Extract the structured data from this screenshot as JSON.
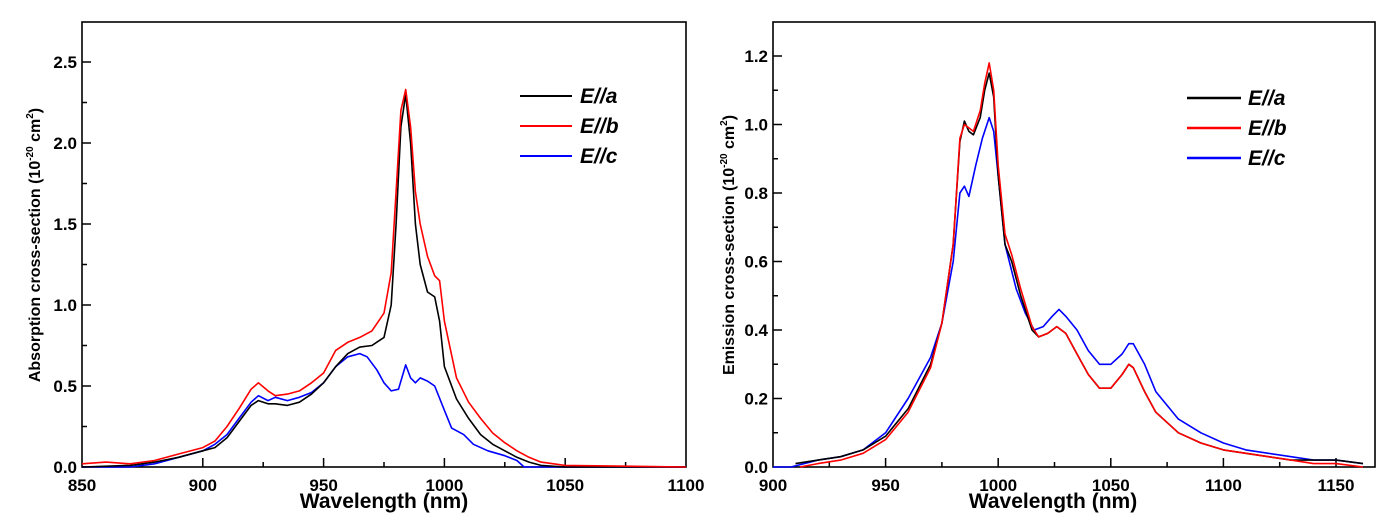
{
  "chart_data": [
    {
      "type": "line",
      "title": "",
      "xlabel": "Wavelength (nm)",
      "ylabel": "Absorption cross-section (10^-20 cm^2)",
      "ylabel_parts": {
        "main": "Absorption cross-section (10",
        "exp1": "-20",
        "mid": " cm",
        "exp2": "2",
        "end": ")"
      },
      "xlim": [
        850,
        1100
      ],
      "ylim": [
        0,
        2.75
      ],
      "xticks": [
        850,
        900,
        950,
        1000,
        1050,
        1100
      ],
      "xtick_labels": [
        "850",
        "900",
        "950",
        "1000",
        "1050",
        "1100"
      ],
      "yticks": [
        0.0,
        0.5,
        1.0,
        1.5,
        2.0,
        2.5
      ],
      "ytick_labels": [
        "0.0",
        "0.5",
        "1.0",
        "1.5",
        "2.0",
        "2.5"
      ],
      "grid": false,
      "legend_position": "top-right",
      "series": [
        {
          "name": "E//a",
          "label_main": "E//",
          "label_sub": "a",
          "color": "#000000",
          "x": [
            850,
            870,
            880,
            890,
            900,
            905,
            910,
            915,
            920,
            923,
            927,
            930,
            935,
            940,
            945,
            950,
            955,
            960,
            965,
            970,
            975,
            978,
            980,
            982,
            984,
            986,
            988,
            990,
            993,
            996,
            998,
            1000,
            1005,
            1010,
            1015,
            1020,
            1025,
            1030,
            1035,
            1040,
            1050,
            1100
          ],
          "y": [
            0.0,
            0.01,
            0.03,
            0.06,
            0.1,
            0.12,
            0.18,
            0.28,
            0.38,
            0.41,
            0.39,
            0.39,
            0.38,
            0.4,
            0.45,
            0.52,
            0.62,
            0.7,
            0.74,
            0.75,
            0.8,
            1.0,
            1.5,
            2.1,
            2.3,
            2.0,
            1.5,
            1.25,
            1.08,
            1.05,
            0.9,
            0.62,
            0.42,
            0.3,
            0.2,
            0.14,
            0.1,
            0.06,
            0.03,
            0.01,
            0.0,
            0.0
          ]
        },
        {
          "name": "E//b",
          "label_main": "E//",
          "label_sub": "b",
          "color": "#ff0000",
          "x": [
            850,
            860,
            870,
            880,
            890,
            900,
            905,
            910,
            915,
            920,
            923,
            927,
            930,
            935,
            940,
            945,
            950,
            955,
            960,
            965,
            970,
            975,
            978,
            980,
            982,
            984,
            986,
            988,
            990,
            993,
            996,
            998,
            1000,
            1005,
            1010,
            1015,
            1020,
            1025,
            1030,
            1035,
            1040,
            1050,
            1100
          ],
          "y": [
            0.02,
            0.03,
            0.02,
            0.04,
            0.08,
            0.12,
            0.16,
            0.25,
            0.36,
            0.48,
            0.52,
            0.47,
            0.44,
            0.45,
            0.47,
            0.52,
            0.58,
            0.72,
            0.77,
            0.8,
            0.84,
            0.95,
            1.2,
            1.7,
            2.2,
            2.33,
            2.1,
            1.7,
            1.5,
            1.3,
            1.18,
            1.15,
            0.9,
            0.55,
            0.4,
            0.3,
            0.21,
            0.15,
            0.1,
            0.06,
            0.03,
            0.01,
            0.0
          ]
        },
        {
          "name": "E//c",
          "label_main": "E//",
          "label_sub": "c",
          "color": "#0000ff",
          "x": [
            850,
            870,
            880,
            890,
            900,
            905,
            910,
            915,
            920,
            923,
            927,
            930,
            935,
            940,
            945,
            950,
            955,
            960,
            965,
            968,
            972,
            975,
            978,
            981,
            984,
            986,
            988,
            990,
            993,
            996,
            1000,
            1003,
            1008,
            1012,
            1018,
            1025,
            1030,
            1033,
            1040,
            1050,
            1100
          ],
          "y": [
            0.0,
            0.0,
            0.02,
            0.06,
            0.1,
            0.14,
            0.2,
            0.3,
            0.4,
            0.44,
            0.41,
            0.43,
            0.41,
            0.43,
            0.46,
            0.52,
            0.62,
            0.68,
            0.7,
            0.68,
            0.6,
            0.52,
            0.47,
            0.48,
            0.63,
            0.55,
            0.52,
            0.55,
            0.53,
            0.5,
            0.35,
            0.24,
            0.2,
            0.14,
            0.1,
            0.07,
            0.04,
            0.0,
            0.0,
            0.0,
            0.0
          ]
        }
      ]
    },
    {
      "type": "line",
      "title": "",
      "xlabel": "Wavelength (nm)",
      "ylabel": "Emission cross-section (10^-20 cm^2)",
      "ylabel_parts": {
        "main": "Emission cross-section (10",
        "exp1": "-20",
        "mid": " cm",
        "exp2": "2",
        "end": ")"
      },
      "xlim": [
        900,
        1165
      ],
      "ylim": [
        0,
        1.32
      ],
      "xticks": [
        900,
        950,
        1000,
        1050,
        1100,
        1150
      ],
      "xtick_labels": [
        "900",
        "950",
        "1000",
        "1050",
        "1100",
        "1150"
      ],
      "yticks": [
        0.0,
        0.2,
        0.4,
        0.6,
        0.8,
        1.0,
        1.2
      ],
      "ytick_labels": [
        "0.0",
        "0.2",
        "0.4",
        "0.6",
        "0.8",
        "1.0",
        "1.2"
      ],
      "grid": false,
      "legend_position": "top-right",
      "series": [
        {
          "name": "E//a",
          "label_main": "E//",
          "label_sub": "a",
          "color": "#000000",
          "x": [
            910,
            920,
            930,
            940,
            950,
            960,
            970,
            975,
            980,
            983,
            985,
            987,
            989,
            992,
            994,
            996,
            998,
            1000,
            1003,
            1006,
            1010,
            1015,
            1018,
            1022,
            1026,
            1030,
            1035,
            1040,
            1045,
            1050,
            1055,
            1058,
            1060,
            1065,
            1070,
            1080,
            1090,
            1100,
            1110,
            1120,
            1130,
            1140,
            1150,
            1162
          ],
          "y": [
            0.01,
            0.02,
            0.03,
            0.05,
            0.09,
            0.17,
            0.3,
            0.42,
            0.65,
            0.95,
            1.01,
            0.98,
            0.97,
            1.02,
            1.1,
            1.15,
            1.08,
            0.85,
            0.65,
            0.6,
            0.5,
            0.4,
            0.38,
            0.39,
            0.41,
            0.39,
            0.33,
            0.27,
            0.23,
            0.23,
            0.27,
            0.3,
            0.29,
            0.22,
            0.16,
            0.1,
            0.07,
            0.05,
            0.04,
            0.03,
            0.02,
            0.02,
            0.02,
            0.01
          ]
        },
        {
          "name": "E//b",
          "label_main": "E//",
          "label_sub": "b",
          "color": "#ff0000",
          "x": [
            912,
            920,
            930,
            940,
            950,
            960,
            970,
            975,
            980,
            983,
            985,
            987,
            989,
            992,
            994,
            996,
            998,
            1000,
            1003,
            1006,
            1010,
            1015,
            1018,
            1022,
            1026,
            1030,
            1035,
            1040,
            1045,
            1050,
            1055,
            1058,
            1060,
            1065,
            1070,
            1080,
            1090,
            1100,
            1110,
            1120,
            1130,
            1140,
            1150,
            1162
          ],
          "y": [
            0.0,
            0.01,
            0.02,
            0.04,
            0.08,
            0.16,
            0.29,
            0.42,
            0.65,
            0.96,
            1.0,
            0.99,
            0.98,
            1.04,
            1.12,
            1.18,
            1.1,
            0.88,
            0.68,
            0.62,
            0.52,
            0.41,
            0.38,
            0.39,
            0.41,
            0.39,
            0.33,
            0.27,
            0.23,
            0.23,
            0.27,
            0.3,
            0.29,
            0.22,
            0.16,
            0.1,
            0.07,
            0.05,
            0.04,
            0.03,
            0.02,
            0.01,
            0.01,
            0.0
          ]
        },
        {
          "name": "E//c",
          "label_main": "E//",
          "label_sub": "c",
          "color": "#0000ff",
          "x": [
            900,
            908,
            920,
            930,
            940,
            950,
            960,
            965,
            970,
            975,
            980,
            983,
            985,
            987,
            990,
            993,
            996,
            998,
            1000,
            1003,
            1008,
            1012,
            1016,
            1020,
            1024,
            1027,
            1030,
            1035,
            1040,
            1045,
            1050,
            1055,
            1058,
            1060,
            1065,
            1070,
            1080,
            1090,
            1100,
            1110,
            1120,
            1130,
            1140,
            1150,
            1162
          ],
          "y": [
            0.0,
            0.0,
            0.02,
            0.03,
            0.05,
            0.1,
            0.2,
            0.26,
            0.32,
            0.42,
            0.6,
            0.8,
            0.82,
            0.79,
            0.88,
            0.96,
            1.02,
            0.98,
            0.85,
            0.65,
            0.52,
            0.45,
            0.4,
            0.41,
            0.44,
            0.46,
            0.44,
            0.4,
            0.34,
            0.3,
            0.3,
            0.33,
            0.36,
            0.36,
            0.3,
            0.22,
            0.14,
            0.1,
            0.07,
            0.05,
            0.04,
            0.03,
            0.02,
            0.02,
            0.01
          ]
        }
      ]
    }
  ]
}
